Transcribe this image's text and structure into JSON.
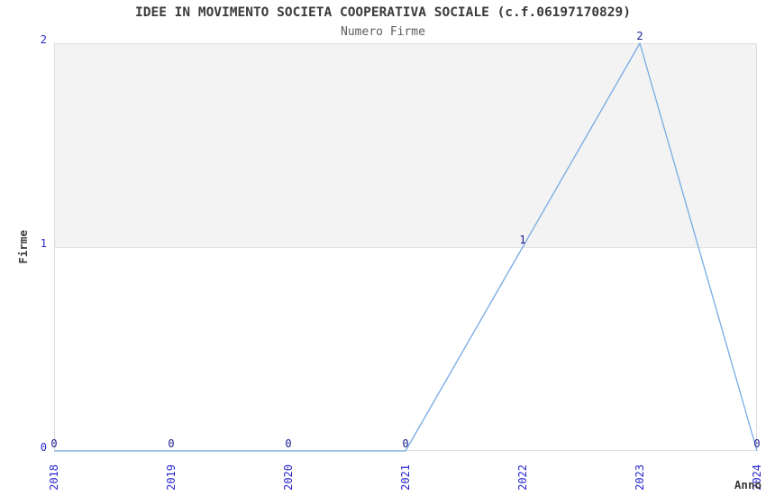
{
  "chart_data": {
    "type": "line",
    "title": "IDEE IN MOVIMENTO SOCIETA COOPERATIVA SOCIALE (c.f.06197170829)",
    "subtitle": "Numero Firme",
    "xlabel": "Anno",
    "ylabel": "Firme",
    "categories": [
      "2018",
      "2019",
      "2020",
      "2021",
      "2022",
      "2023",
      "2024"
    ],
    "values": [
      0,
      0,
      0,
      0,
      1,
      2,
      0
    ],
    "data_labels": [
      "0",
      "0",
      "0",
      "0",
      "1",
      "2",
      "0"
    ],
    "yticks": [
      "0",
      "1",
      "2"
    ],
    "ylim": [
      0,
      2
    ],
    "grid": "horizontal-band",
    "legend": "none",
    "colors": {
      "line": "#77abe4",
      "tick_label": "#2727cf",
      "data_label": "#1a1a8e",
      "band": "#f3f3f3",
      "border": "#dcdcdc",
      "title": "#3a3a3a",
      "subtitle": "#5f5f5f",
      "axis_title": "#3c3c3c"
    }
  }
}
